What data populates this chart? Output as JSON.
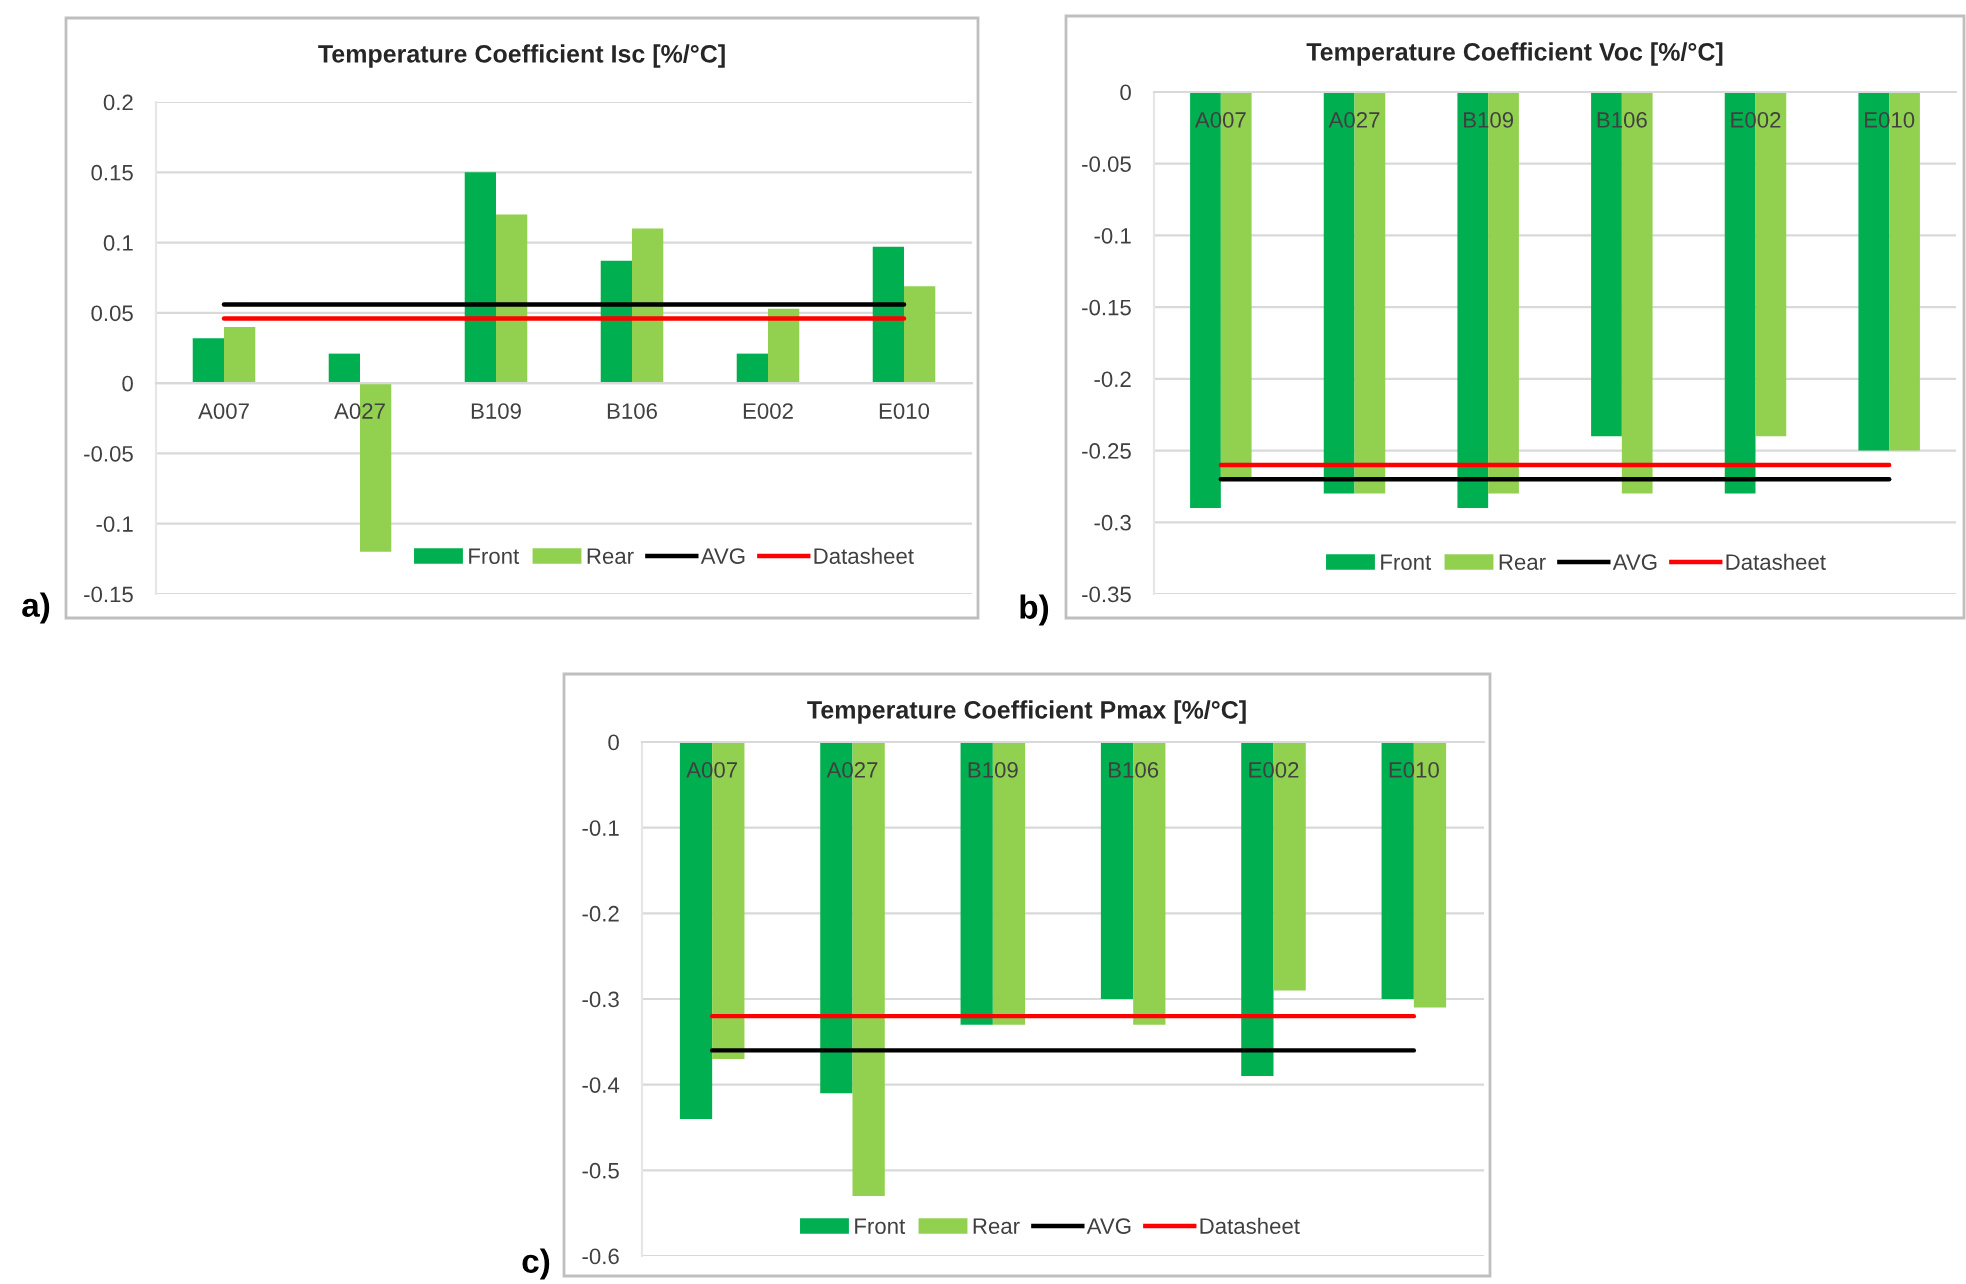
{
  "chart_data": [
    {
      "type": "bar",
      "title": "Temperature Coefficient Isc [%/°C]",
      "categories": [
        "A007",
        "A027",
        "B109",
        "B106",
        "E002",
        "E010"
      ],
      "series": [
        {
          "name": "Front",
          "color": "#00b050",
          "values": [
            0.032,
            0.021,
            0.15,
            0.087,
            0.021,
            0.097
          ]
        },
        {
          "name": "Rear",
          "color": "#92d050",
          "values": [
            0.04,
            -0.12,
            0.12,
            0.11,
            0.053,
            0.069
          ]
        },
        {
          "name": "AVG",
          "type": "line",
          "color": "#000000",
          "values": [
            0.056,
            0.056,
            0.056,
            0.056,
            0.056,
            0.056
          ]
        },
        {
          "name": "Datasheet",
          "type": "line",
          "color": "#ff0000",
          "values": [
            0.046,
            0.046,
            0.046,
            0.046,
            0.046,
            0.046
          ]
        }
      ],
      "ylim": [
        -0.15,
        0.2
      ],
      "yticks": [
        -0.15,
        -0.1,
        -0.05,
        0,
        0.05,
        0.1,
        0.15,
        0.2
      ],
      "grid": "y",
      "legend": "bottom",
      "annotations": [
        "a)"
      ]
    },
    {
      "type": "bar",
      "title": "Temperature Coefficient Voc [%/°C]",
      "categories": [
        "A007",
        "A027",
        "B109",
        "B106",
        "E002",
        "E010"
      ],
      "series": [
        {
          "name": "Front",
          "color": "#00b050",
          "values": [
            -0.29,
            -0.28,
            -0.29,
            -0.24,
            -0.28,
            -0.25
          ]
        },
        {
          "name": "Rear",
          "color": "#92d050",
          "values": [
            -0.27,
            -0.28,
            -0.28,
            -0.28,
            -0.24,
            -0.25
          ]
        },
        {
          "name": "AVG",
          "type": "line",
          "color": "#000000",
          "values": [
            -0.27,
            -0.27,
            -0.27,
            -0.27,
            -0.27,
            -0.27
          ]
        },
        {
          "name": "Datasheet",
          "type": "line",
          "color": "#ff0000",
          "values": [
            -0.26,
            -0.26,
            -0.26,
            -0.26,
            -0.26,
            -0.26
          ]
        }
      ],
      "ylim": [
        -0.35,
        0
      ],
      "yticks": [
        -0.35,
        -0.3,
        -0.25,
        -0.2,
        -0.15,
        -0.1,
        -0.05,
        0
      ],
      "grid": "y",
      "legend": "bottom",
      "annotations": [
        "b)"
      ]
    },
    {
      "type": "bar",
      "title": "Temperature Coefficient Pmax [%/°C]",
      "categories": [
        "A007",
        "A027",
        "B109",
        "B106",
        "E002",
        "E010"
      ],
      "series": [
        {
          "name": "Front",
          "color": "#00b050",
          "values": [
            -0.44,
            -0.41,
            -0.33,
            -0.3,
            -0.39,
            -0.3
          ]
        },
        {
          "name": "Rear",
          "color": "#92d050",
          "values": [
            -0.37,
            -0.53,
            -0.33,
            -0.33,
            -0.29,
            -0.31
          ]
        },
        {
          "name": "AVG",
          "type": "line",
          "color": "#000000",
          "values": [
            -0.36,
            -0.36,
            -0.36,
            -0.36,
            -0.36,
            -0.36
          ]
        },
        {
          "name": "Datasheet",
          "type": "line",
          "color": "#ff0000",
          "values": [
            -0.32,
            -0.32,
            -0.32,
            -0.32,
            -0.32,
            -0.32
          ]
        }
      ],
      "ylim": [
        -0.6,
        0
      ],
      "yticks": [
        -0.6,
        -0.5,
        -0.4,
        -0.3,
        -0.2,
        -0.1,
        0
      ],
      "grid": "y",
      "legend": "bottom",
      "annotations": [
        "c)"
      ]
    }
  ]
}
